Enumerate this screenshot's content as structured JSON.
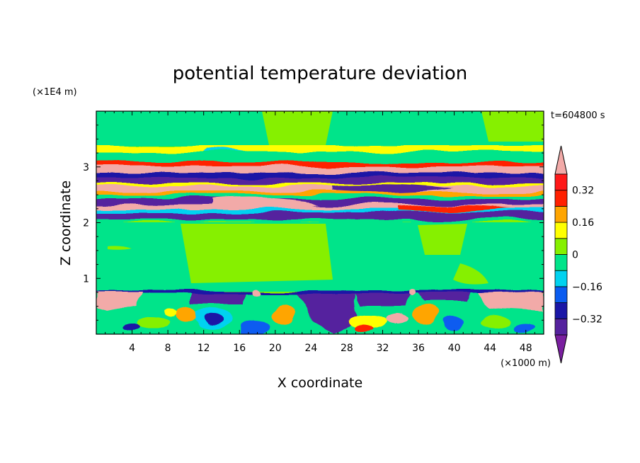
{
  "chart_data": {
    "type": "heatmap",
    "title": "potential temperature deviation",
    "xlabel": "X coordinate",
    "ylabel": "Z coordinate",
    "x_unit": "(×1000 m)",
    "y_unit": "(×1E4 m)",
    "time_label": "t=604800 s",
    "xlim": [
      0,
      50
    ],
    "ylim": [
      0,
      4
    ],
    "xticks": [
      4,
      8,
      12,
      16,
      20,
      24,
      28,
      32,
      36,
      40,
      44,
      48
    ],
    "yticks": [
      1,
      2,
      3
    ],
    "colorbar": {
      "labels": [
        "0.32",
        "0.16",
        "0",
        "−0.16",
        "−0.32"
      ],
      "label_values": [
        0.32,
        0.16,
        0,
        -0.16,
        -0.32
      ],
      "levels": [
        -0.4,
        -0.32,
        -0.24,
        -0.16,
        -0.08,
        0,
        0.08,
        0.16,
        0.24,
        0.32,
        0.4
      ],
      "colors": [
        "#7a1fa0",
        "#55229e",
        "#1a16a6",
        "#0a5cf0",
        "#00d2f0",
        "#00e48a",
        "#86f000",
        "#ffff00",
        "#ffa500",
        "#ff2000",
        "#ff1818",
        "#f2aaa8"
      ]
    }
  }
}
